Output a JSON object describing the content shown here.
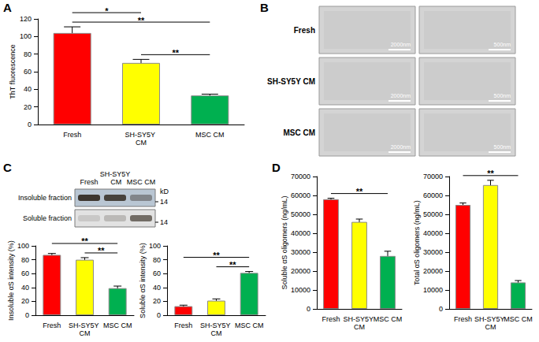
{
  "panel_labels": [
    "A",
    "B",
    "C",
    "D"
  ],
  "chart_data": [
    {
      "type": "bar",
      "ylabel": "ThT fluorescence",
      "categories": [
        "Fresh",
        "SH-SY5Y CM",
        "MSC CM"
      ],
      "values": [
        104,
        70,
        33
      ],
      "errors": [
        7,
        4,
        1.5
      ],
      "colors": [
        "#ff0000",
        "#ffff00",
        "#00b050"
      ],
      "ylim": [
        0,
        120
      ],
      "yticks": [
        0,
        20,
        40,
        60,
        80,
        100,
        120
      ],
      "significance": [
        {
          "between": [
            "SH-SY5Y CM",
            "MSC CM"
          ],
          "label": "**"
        },
        {
          "between": [
            "Fresh",
            "MSC CM"
          ],
          "label": "**"
        },
        {
          "between": [
            "Fresh",
            "SH-SY5Y CM"
          ],
          "label": "*"
        }
      ]
    },
    {
      "type": "bar",
      "ylabel": "Insoluble αS intensity (%)",
      "categories": [
        "Fresh",
        "SH-SY5Y CM",
        "MSC CM"
      ],
      "values": [
        87,
        80,
        39
      ],
      "errors": [
        2,
        3,
        3
      ],
      "colors": [
        "#ff0000",
        "#ffff00",
        "#00b050"
      ],
      "ylim": [
        0,
        100
      ],
      "yticks": [
        0,
        20,
        40,
        60,
        80,
        100
      ],
      "significance": [
        {
          "between": [
            "SH-SY5Y CM",
            "MSC CM"
          ],
          "label": "**"
        },
        {
          "between": [
            "Fresh",
            "MSC CM"
          ],
          "label": "**"
        }
      ]
    },
    {
      "type": "bar",
      "ylabel": "Soluble αS intensity (%)",
      "categories": [
        "Fresh",
        "SH-SY5Y CM",
        "MSC CM"
      ],
      "values": [
        13,
        21,
        61
      ],
      "errors": [
        1.5,
        2.5,
        2
      ],
      "colors": [
        "#ff0000",
        "#ffff00",
        "#00b050"
      ],
      "ylim": [
        0,
        100
      ],
      "yticks": [
        0,
        20,
        40,
        60,
        80,
        100
      ],
      "significance": [
        {
          "between": [
            "SH-SY5Y CM",
            "MSC CM"
          ],
          "label": "**"
        },
        {
          "between": [
            "Fresh",
            "MSC CM"
          ],
          "label": "**"
        }
      ]
    },
    {
      "type": "bar",
      "ylabel": "Soluble αS oligomers (ng/mL)",
      "categories": [
        "Fresh",
        "SH-SY5Y CM",
        "MSC CM"
      ],
      "values": [
        58000,
        46000,
        28000
      ],
      "errors": [
        500,
        1500,
        2500
      ],
      "colors": [
        "#ff0000",
        "#ffff00",
        "#00b050"
      ],
      "ylim": [
        0,
        70000
      ],
      "yticks": [
        0,
        10000,
        20000,
        30000,
        40000,
        50000,
        60000,
        70000
      ],
      "significance": [
        {
          "between": [
            "Fresh",
            "MSC CM"
          ],
          "label": "**"
        }
      ]
    },
    {
      "type": "bar",
      "ylabel": "Total αS oligomers (ng/mL)",
      "categories": [
        "Fresh",
        "SH-SY5Y CM",
        "MSC CM"
      ],
      "values": [
        55000,
        65500,
        14000
      ],
      "errors": [
        1000,
        2500,
        1000
      ],
      "colors": [
        "#ff0000",
        "#ffff00",
        "#00b050"
      ],
      "ylim": [
        0,
        70000
      ],
      "yticks": [
        0,
        10000,
        20000,
        30000,
        40000,
        50000,
        60000,
        70000
      ],
      "significance": [
        {
          "between": [
            "Fresh",
            "MSC CM"
          ],
          "label": "**"
        }
      ]
    }
  ],
  "micrographs": {
    "rows": [
      "Fresh",
      "SH-SY5Y CM",
      "MSC CM"
    ],
    "scale_bars": [
      "2000nm",
      "500nm"
    ]
  },
  "blot": {
    "columns": [
      "Fresh",
      "SH-SY5Y CM",
      "MSC CM"
    ],
    "rows": [
      "Insoluble fraction",
      "Soluble fraction"
    ],
    "unit": "kD",
    "row_markers": [
      14,
      14
    ]
  }
}
